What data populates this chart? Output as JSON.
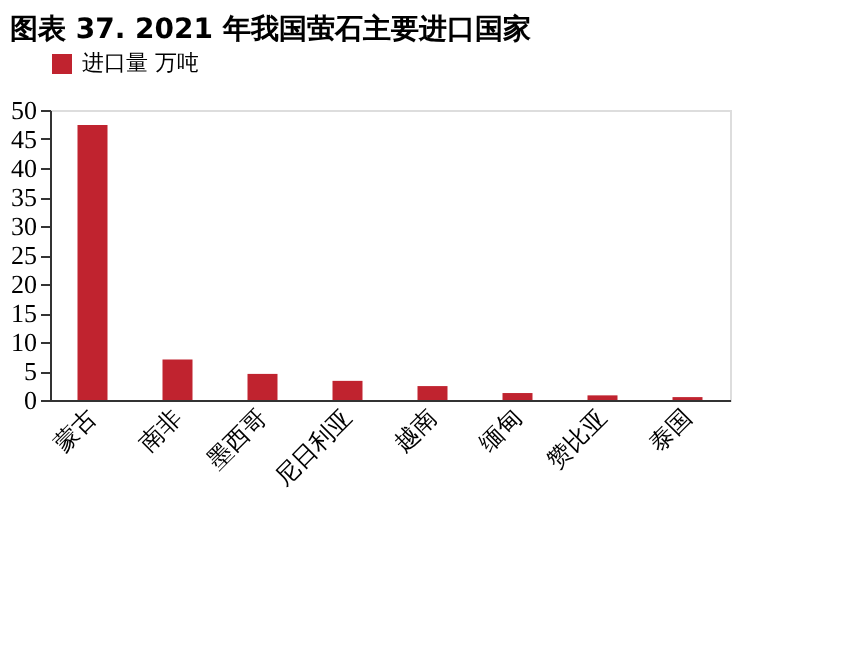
{
  "chart_data": {
    "type": "bar",
    "title": "图表 37. 2021 年我国萤石主要进口国家",
    "categories": [
      "蒙古",
      "南非",
      "墨西哥",
      "尼日利亚",
      "越南",
      "缅甸",
      "赞比亚",
      "泰国"
    ],
    "series": [
      {
        "name": "进口量 万吨",
        "color": "#c0232f",
        "values": [
          47.4,
          7.0,
          4.5,
          3.3,
          2.4,
          1.2,
          0.8,
          0.5
        ]
      }
    ],
    "ylim": [
      0,
      50
    ],
    "yticks": [
      0,
      5,
      10,
      15,
      20,
      25,
      30,
      35,
      40,
      45,
      50
    ],
    "grid": false,
    "legend": "top"
  }
}
